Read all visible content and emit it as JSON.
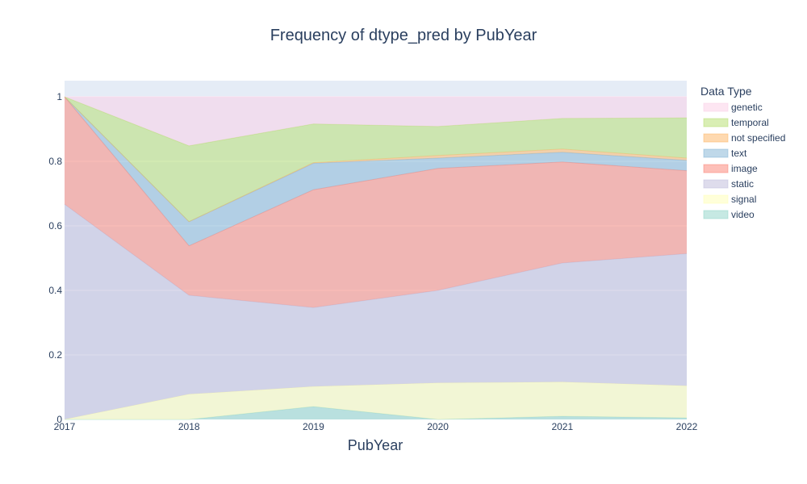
{
  "chart_data": {
    "type": "area",
    "title": "Frequency of dtype_pred by PubYear",
    "xlabel": "PubYear",
    "ylabel": "",
    "x": [
      2017,
      2018,
      2019,
      2020,
      2021,
      2022
    ],
    "ylim": [
      0,
      1.05
    ],
    "y_ticks": [
      0,
      0.2,
      0.4,
      0.6,
      0.8,
      1
    ],
    "y_tick_labels": [
      "0",
      "0.2",
      "0.4",
      "0.6",
      "0.8",
      "1"
    ],
    "stacked": true,
    "grid": true,
    "legend_title": "Data Type",
    "legend_position": "right",
    "series": [
      {
        "name": "video",
        "color": "#8dd3c7",
        "values": [
          0,
          0,
          0.04,
          0,
          0.01,
          0.005
        ]
      },
      {
        "name": "signal",
        "color": "#ffffb3",
        "values": [
          0,
          0.078,
          0.062,
          0.113,
          0.106,
          0.099
        ]
      },
      {
        "name": "static",
        "color": "#bebada",
        "values": [
          0.667,
          0.307,
          0.245,
          0.287,
          0.369,
          0.41
        ]
      },
      {
        "name": "image",
        "color": "#fb8072",
        "values": [
          0.333,
          0.153,
          0.365,
          0.378,
          0.313,
          0.257
        ]
      },
      {
        "name": "text",
        "color": "#80b1d3",
        "values": [
          0,
          0.075,
          0.082,
          0.032,
          0.03,
          0.032
        ]
      },
      {
        "name": "not specified",
        "color": "#fdb462",
        "values": [
          0,
          0,
          0.002,
          0.008,
          0.01,
          0.007
        ]
      },
      {
        "name": "temporal",
        "color": "#b3de69",
        "values": [
          0,
          0.235,
          0.12,
          0.09,
          0.095,
          0.125
        ]
      },
      {
        "name": "genetic",
        "color": "#fccde5",
        "values": [
          0,
          0.152,
          0.084,
          0.092,
          0.067,
          0.065
        ]
      }
    ],
    "legend_order": [
      "genetic",
      "temporal",
      "not specified",
      "text",
      "image",
      "static",
      "signal",
      "video"
    ]
  }
}
